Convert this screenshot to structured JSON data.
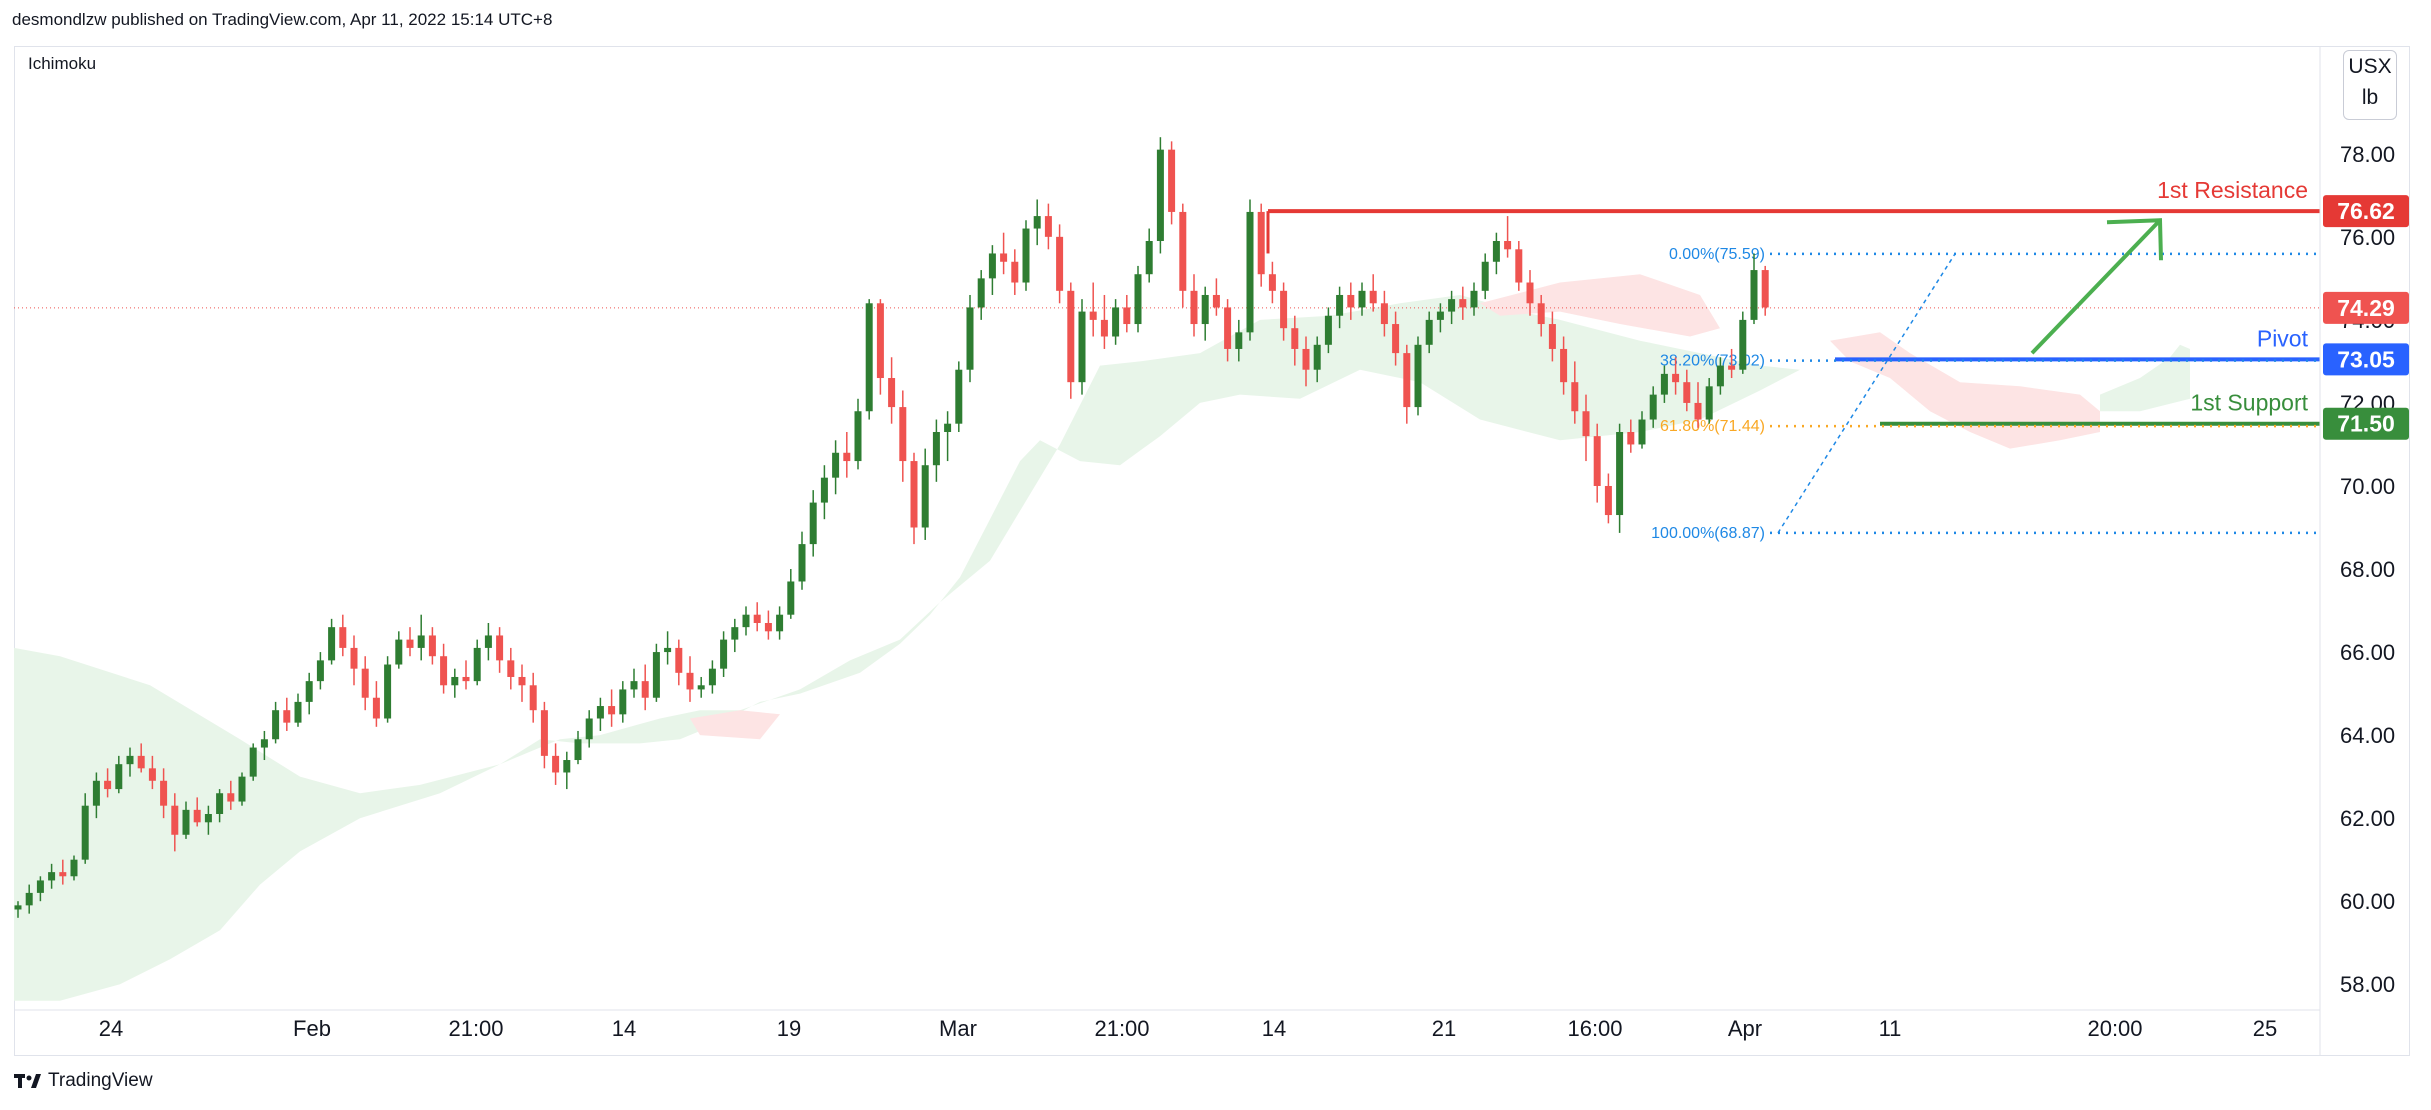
{
  "header": {
    "publisher": "desmondlzw published on TradingView.com, Apr 11, 2022 15:14 UTC+8"
  },
  "indicator": "Ichimoku",
  "unit": {
    "line1": "USX",
    "line2": "lb"
  },
  "footer": {
    "brand": "TradingView"
  },
  "colors": {
    "up": "#2e7d32",
    "down": "#ef5350",
    "resistance": "#e53935",
    "pivot": "#2962ff",
    "support": "#388e3c",
    "cloud_bull": "#e8f5e9",
    "cloud_bear": "#fde4e4",
    "fib": "#1e88e5",
    "fib618": "#f9a825"
  },
  "chart_data": {
    "type": "candlestick",
    "ylim": [
      57.5,
      80.5
    ],
    "y_ticks": [
      "58.00",
      "60.00",
      "62.00",
      "64.00",
      "66.00",
      "68.00",
      "70.00",
      "72.00",
      "74.00",
      "76.00",
      "78.00"
    ],
    "x_ticks": [
      "24",
      "Feb",
      "21:00",
      "14",
      "19",
      "Mar",
      "21:00",
      "14",
      "21",
      "16:00",
      "Apr",
      "11",
      "20:00",
      "25"
    ],
    "levels": [
      {
        "label": "1st Resistance",
        "value": "76.62",
        "color": "#e53935"
      },
      {
        "label": "Pivot",
        "value": "73.05",
        "color": "#2962ff"
      },
      {
        "label": "1st Support",
        "value": "71.50",
        "color": "#388e3c"
      }
    ],
    "last_price": "74.29",
    "fib_levels": [
      {
        "label": "0.00%(75.59)",
        "value": 75.59
      },
      {
        "label": "38.20%(73.02)",
        "value": 73.02
      },
      {
        "label": "61.80%(71.44)",
        "value": 71.44
      },
      {
        "label": "100.00%(68.87)",
        "value": 68.87
      }
    ],
    "candles": [
      [
        59.8,
        60.0,
        59.6,
        59.9
      ],
      [
        59.9,
        60.4,
        59.7,
        60.2
      ],
      [
        60.2,
        60.6,
        60.0,
        60.5
      ],
      [
        60.5,
        60.9,
        60.3,
        60.7
      ],
      [
        60.7,
        61.0,
        60.4,
        60.6
      ],
      [
        60.6,
        61.1,
        60.5,
        61.0
      ],
      [
        61.0,
        62.6,
        60.9,
        62.3
      ],
      [
        62.3,
        63.1,
        62.0,
        62.9
      ],
      [
        62.9,
        63.2,
        62.5,
        62.7
      ],
      [
        62.7,
        63.5,
        62.6,
        63.3
      ],
      [
        63.3,
        63.7,
        63.0,
        63.5
      ],
      [
        63.5,
        63.8,
        63.1,
        63.2
      ],
      [
        63.2,
        63.5,
        62.7,
        62.9
      ],
      [
        62.9,
        63.2,
        62.0,
        62.3
      ],
      [
        62.3,
        62.6,
        61.2,
        61.6
      ],
      [
        61.6,
        62.4,
        61.5,
        62.2
      ],
      [
        62.2,
        62.5,
        61.8,
        61.9
      ],
      [
        61.9,
        62.3,
        61.6,
        62.1
      ],
      [
        62.1,
        62.7,
        61.9,
        62.6
      ],
      [
        62.6,
        62.9,
        62.2,
        62.4
      ],
      [
        62.4,
        63.1,
        62.3,
        63.0
      ],
      [
        63.0,
        63.8,
        62.9,
        63.7
      ],
      [
        63.7,
        64.1,
        63.4,
        63.9
      ],
      [
        63.9,
        64.8,
        63.8,
        64.6
      ],
      [
        64.6,
        64.9,
        64.1,
        64.3
      ],
      [
        64.3,
        65.0,
        64.2,
        64.8
      ],
      [
        64.8,
        65.5,
        64.5,
        65.3
      ],
      [
        65.3,
        66.0,
        65.1,
        65.8
      ],
      [
        65.8,
        66.8,
        65.7,
        66.6
      ],
      [
        66.6,
        66.9,
        65.9,
        66.1
      ],
      [
        66.1,
        66.4,
        65.2,
        65.6
      ],
      [
        65.6,
        65.9,
        64.6,
        64.9
      ],
      [
        64.9,
        65.3,
        64.2,
        64.4
      ],
      [
        64.4,
        65.9,
        64.3,
        65.7
      ],
      [
        65.7,
        66.5,
        65.6,
        66.3
      ],
      [
        66.3,
        66.6,
        65.9,
        66.1
      ],
      [
        66.1,
        66.9,
        65.8,
        66.4
      ],
      [
        66.4,
        66.6,
        65.7,
        65.9
      ],
      [
        65.9,
        66.2,
        65.0,
        65.2
      ],
      [
        65.2,
        65.6,
        64.9,
        65.4
      ],
      [
        65.4,
        65.8,
        65.1,
        65.3
      ],
      [
        65.3,
        66.3,
        65.2,
        66.1
      ],
      [
        66.1,
        66.7,
        65.8,
        66.4
      ],
      [
        66.4,
        66.6,
        65.5,
        65.8
      ],
      [
        65.8,
        66.1,
        65.1,
        65.4
      ],
      [
        65.4,
        65.7,
        64.8,
        65.2
      ],
      [
        65.2,
        65.5,
        64.3,
        64.6
      ],
      [
        64.6,
        64.8,
        63.2,
        63.5
      ],
      [
        63.5,
        63.8,
        62.8,
        63.1
      ],
      [
        63.1,
        63.6,
        62.7,
        63.4
      ],
      [
        63.4,
        64.1,
        63.3,
        63.9
      ],
      [
        63.9,
        64.6,
        63.7,
        64.4
      ],
      [
        64.4,
        64.9,
        64.1,
        64.7
      ],
      [
        64.7,
        65.1,
        64.2,
        64.5
      ],
      [
        64.5,
        65.3,
        64.3,
        65.1
      ],
      [
        65.1,
        65.6,
        64.9,
        65.3
      ],
      [
        65.3,
        65.7,
        64.6,
        64.9
      ],
      [
        64.9,
        66.2,
        64.8,
        66.0
      ],
      [
        66.0,
        66.5,
        65.7,
        66.1
      ],
      [
        66.1,
        66.3,
        65.2,
        65.5
      ],
      [
        65.5,
        65.9,
        64.8,
        65.1
      ],
      [
        65.1,
        65.4,
        64.9,
        65.2
      ],
      [
        65.2,
        65.8,
        65.0,
        65.6
      ],
      [
        65.6,
        66.5,
        65.4,
        66.3
      ],
      [
        66.3,
        66.8,
        66.0,
        66.6
      ],
      [
        66.6,
        67.1,
        66.4,
        66.9
      ],
      [
        66.9,
        67.2,
        66.5,
        66.7
      ],
      [
        66.7,
        67.0,
        66.3,
        66.5
      ],
      [
        66.5,
        67.1,
        66.3,
        66.9
      ],
      [
        66.9,
        68.0,
        66.8,
        67.7
      ],
      [
        67.7,
        68.9,
        67.5,
        68.6
      ],
      [
        68.6,
        69.9,
        68.3,
        69.6
      ],
      [
        69.6,
        70.5,
        69.2,
        70.2
      ],
      [
        70.2,
        71.1,
        69.8,
        70.8
      ],
      [
        70.8,
        71.3,
        70.2,
        70.6
      ],
      [
        70.6,
        72.1,
        70.4,
        71.8
      ],
      [
        71.8,
        74.5,
        71.6,
        74.4
      ],
      [
        74.4,
        74.5,
        72.2,
        72.6
      ],
      [
        72.6,
        73.1,
        71.5,
        71.9
      ],
      [
        71.9,
        72.3,
        70.1,
        70.6
      ],
      [
        70.6,
        70.8,
        68.6,
        69.0
      ],
      [
        69.0,
        70.9,
        68.7,
        70.5
      ],
      [
        70.5,
        71.6,
        70.1,
        71.3
      ],
      [
        71.3,
        71.8,
        70.6,
        71.5
      ],
      [
        71.5,
        73.0,
        71.3,
        72.8
      ],
      [
        72.8,
        74.6,
        72.5,
        74.3
      ],
      [
        74.3,
        75.2,
        74.0,
        75.0
      ],
      [
        75.0,
        75.8,
        74.6,
        75.6
      ],
      [
        75.6,
        76.1,
        75.1,
        75.4
      ],
      [
        75.4,
        75.7,
        74.6,
        74.9
      ],
      [
        74.9,
        76.4,
        74.7,
        76.2
      ],
      [
        76.2,
        76.9,
        75.8,
        76.5
      ],
      [
        76.5,
        76.8,
        75.7,
        76.0
      ],
      [
        76.0,
        76.3,
        74.4,
        74.7
      ],
      [
        74.7,
        74.9,
        72.1,
        72.5
      ],
      [
        72.5,
        74.5,
        72.2,
        74.2
      ],
      [
        74.2,
        74.9,
        73.6,
        74.0
      ],
      [
        74.0,
        74.6,
        73.3,
        73.6
      ],
      [
        73.6,
        74.5,
        73.4,
        74.3
      ],
      [
        74.3,
        74.6,
        73.7,
        73.9
      ],
      [
        73.9,
        75.3,
        73.7,
        75.1
      ],
      [
        75.1,
        76.2,
        74.9,
        75.9
      ],
      [
        75.9,
        78.4,
        75.6,
        78.1
      ],
      [
        78.1,
        78.3,
        76.3,
        76.6
      ],
      [
        76.6,
        76.8,
        74.3,
        74.7
      ],
      [
        74.7,
        75.1,
        73.6,
        73.9
      ],
      [
        73.9,
        74.8,
        73.5,
        74.6
      ],
      [
        74.6,
        75.0,
        74.1,
        74.3
      ],
      [
        74.3,
        74.5,
        73.0,
        73.3
      ],
      [
        73.3,
        74.0,
        73.0,
        73.7
      ],
      [
        73.7,
        76.9,
        73.5,
        76.6
      ],
      [
        76.6,
        76.8,
        74.8,
        75.1
      ],
      [
        75.1,
        75.4,
        74.4,
        74.7
      ],
      [
        74.7,
        74.9,
        73.5,
        73.8
      ],
      [
        73.8,
        74.1,
        72.9,
        73.3
      ],
      [
        73.3,
        73.6,
        72.4,
        72.8
      ],
      [
        72.8,
        73.6,
        72.5,
        73.4
      ],
      [
        73.4,
        74.3,
        73.2,
        74.1
      ],
      [
        74.1,
        74.8,
        73.8,
        74.6
      ],
      [
        74.6,
        74.9,
        74.0,
        74.3
      ],
      [
        74.3,
        74.9,
        74.1,
        74.7
      ],
      [
        74.7,
        75.1,
        74.2,
        74.4
      ],
      [
        74.4,
        74.7,
        73.6,
        73.9
      ],
      [
        73.9,
        74.2,
        72.9,
        73.2
      ],
      [
        73.2,
        73.4,
        71.5,
        71.9
      ],
      [
        71.9,
        73.6,
        71.7,
        73.4
      ],
      [
        73.4,
        74.2,
        73.2,
        74.0
      ],
      [
        74.0,
        74.4,
        73.7,
        74.2
      ],
      [
        74.2,
        74.7,
        73.9,
        74.5
      ],
      [
        74.5,
        74.8,
        74.0,
        74.3
      ],
      [
        74.3,
        74.9,
        74.1,
        74.7
      ],
      [
        74.7,
        75.6,
        74.5,
        75.4
      ],
      [
        75.4,
        76.1,
        75.1,
        75.9
      ],
      [
        75.9,
        76.5,
        75.5,
        75.7
      ],
      [
        75.7,
        75.9,
        74.7,
        74.9
      ],
      [
        74.9,
        75.2,
        74.1,
        74.4
      ],
      [
        74.4,
        74.6,
        73.6,
        73.9
      ],
      [
        73.9,
        74.2,
        73.0,
        73.3
      ],
      [
        73.3,
        73.6,
        72.2,
        72.5
      ],
      [
        72.5,
        73.0,
        71.5,
        71.8
      ],
      [
        71.8,
        72.2,
        70.6,
        71.2
      ],
      [
        71.2,
        71.5,
        69.6,
        70.0
      ],
      [
        70.0,
        70.3,
        69.1,
        69.3
      ],
      [
        69.3,
        71.5,
        68.87,
        71.3
      ],
      [
        71.3,
        71.6,
        70.8,
        71.0
      ],
      [
        71.0,
        71.8,
        70.9,
        71.6
      ],
      [
        71.6,
        72.4,
        71.4,
        72.2
      ],
      [
        72.2,
        72.9,
        72.0,
        72.7
      ],
      [
        72.7,
        73.1,
        72.2,
        72.5
      ],
      [
        72.5,
        72.8,
        71.8,
        72.0
      ],
      [
        72.0,
        72.5,
        71.4,
        71.6
      ],
      [
        71.6,
        72.6,
        71.5,
        72.4
      ],
      [
        72.4,
        73.1,
        72.2,
        72.9
      ],
      [
        72.9,
        73.3,
        72.6,
        72.8
      ],
      [
        72.8,
        74.2,
        72.7,
        74.0
      ],
      [
        74.0,
        75.6,
        73.9,
        75.2
      ],
      [
        75.2,
        75.3,
        74.1,
        74.3
      ]
    ]
  }
}
